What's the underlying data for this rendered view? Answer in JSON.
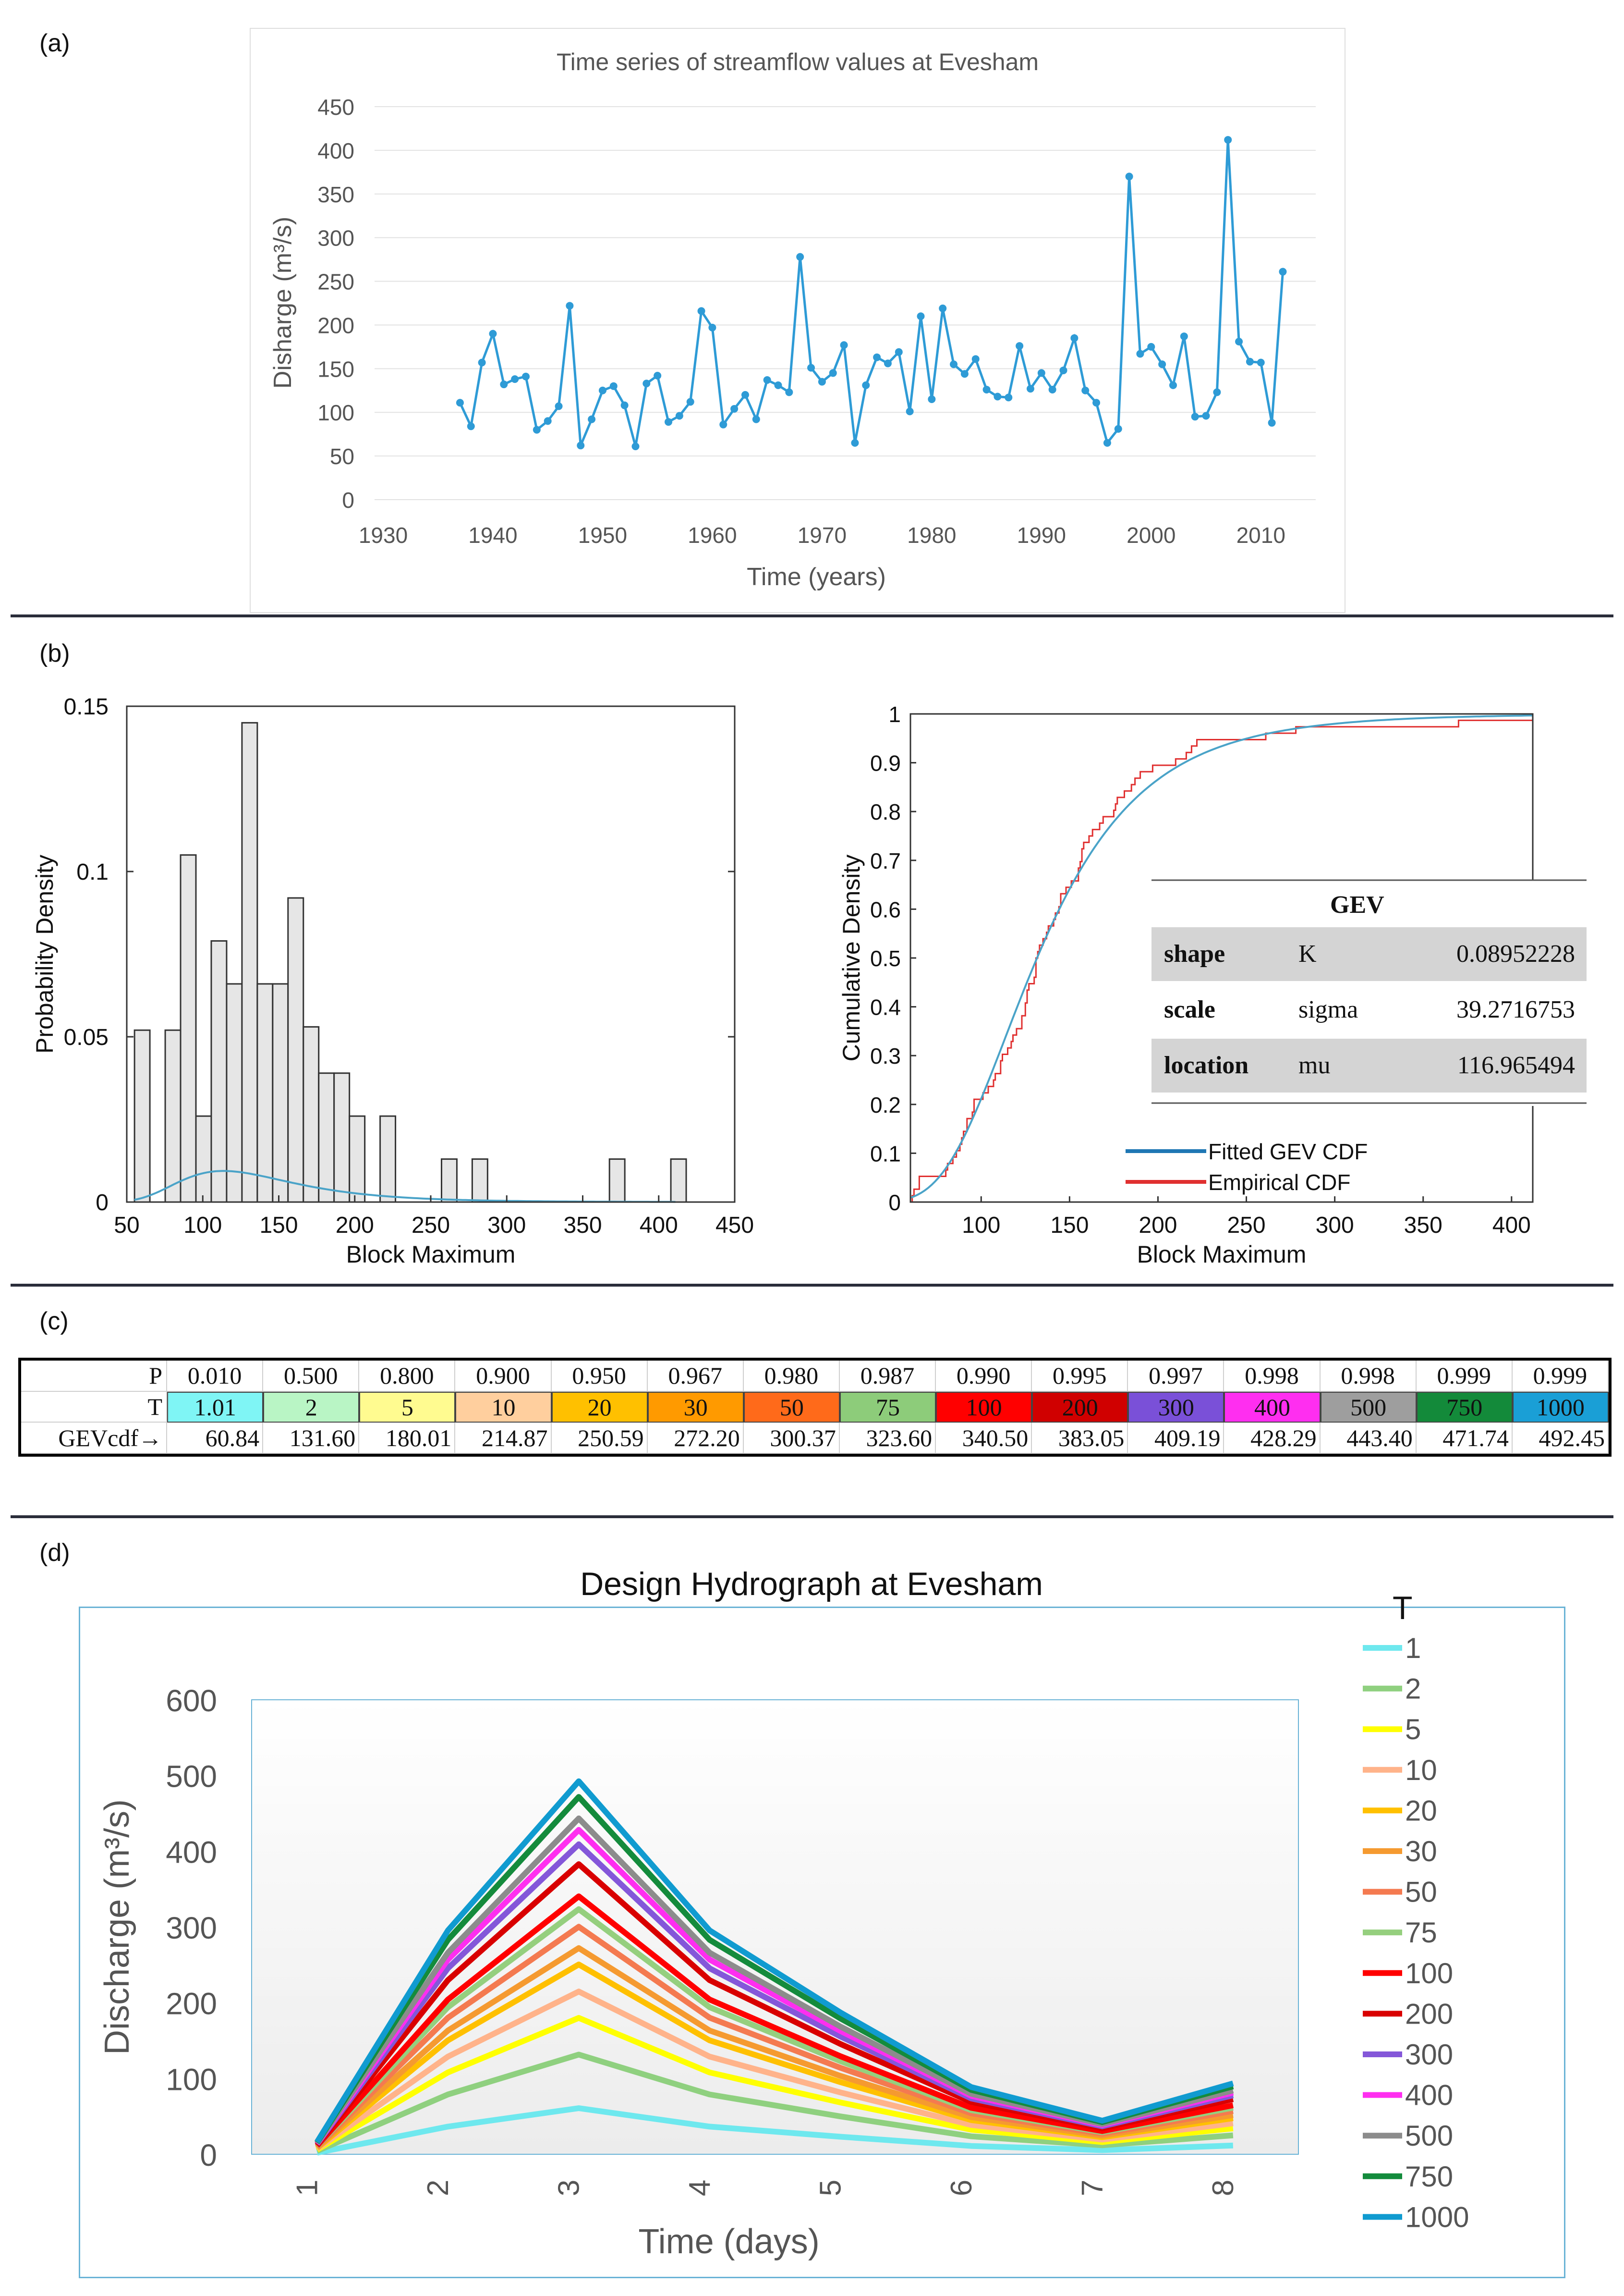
{
  "panels": {
    "a": "(a)",
    "b": "(b)",
    "c": "(c)",
    "d": "(d)"
  },
  "chart_data": [
    {
      "id": "a",
      "type": "line",
      "title": "Time series of streamflow values at Evesham",
      "xlabel": "Time (years)",
      "ylabel": "Disharge (m³/s)",
      "xlim": [
        1930,
        2015
      ],
      "ylim": [
        0,
        450
      ],
      "xticks": [
        1930,
        1940,
        1950,
        1960,
        1970,
        1980,
        1990,
        2000,
        2010
      ],
      "yticks": [
        0,
        50,
        100,
        150,
        200,
        250,
        300,
        350,
        400,
        450
      ],
      "color": "#2e9bd6",
      "x": [
        1937,
        1938,
        1939,
        1940,
        1941,
        1942,
        1943,
        1944,
        1945,
        1946,
        1947,
        1948,
        1949,
        1950,
        1951,
        1952,
        1953,
        1954,
        1955,
        1956,
        1957,
        1958,
        1959,
        1960,
        1961,
        1962,
        1963,
        1964,
        1965,
        1966,
        1967,
        1968,
        1969,
        1970,
        1971,
        1972,
        1973,
        1974,
        1975,
        1976,
        1977,
        1978,
        1979,
        1980,
        1981,
        1982,
        1983,
        1984,
        1985,
        1986,
        1987,
        1988,
        1989,
        1990,
        1991,
        1992,
        1993,
        1994,
        1995,
        1996,
        1997,
        1998,
        1999,
        2000,
        2001,
        2002,
        2003,
        2004,
        2005,
        2006,
        2007,
        2008,
        2009,
        2010,
        2011,
        2012
      ],
      "y": [
        111,
        84,
        157,
        190,
        132,
        138,
        141,
        80,
        90,
        107,
        222,
        62,
        92,
        125,
        130,
        108,
        61,
        133,
        142,
        89,
        96,
        112,
        216,
        197,
        86,
        104,
        120,
        92,
        137,
        131,
        123,
        278,
        151,
        135,
        145,
        177,
        65,
        131,
        163,
        156,
        169,
        101,
        210,
        115,
        219,
        155,
        144,
        161,
        126,
        118,
        117,
        176,
        127,
        145,
        126,
        148,
        185,
        125,
        111,
        65,
        81,
        370,
        167,
        175,
        155,
        131,
        187,
        95,
        96,
        123,
        412,
        181,
        158,
        157,
        88,
        261
      ]
    },
    {
      "id": "b-left",
      "type": "bar",
      "xlabel": "Block Maximum",
      "ylabel": "Probability Density",
      "xlim": [
        50,
        450
      ],
      "ylim": [
        0,
        0.15
      ],
      "xticks": [
        50,
        100,
        150,
        200,
        250,
        300,
        350,
        400,
        450
      ],
      "yticks": [
        0,
        0.05,
        0.1,
        0.15
      ],
      "ytick_labels": [
        "0",
        "0.05",
        "0.1",
        "0.15"
      ],
      "bin_width": 10.1,
      "bin_starts": [
        55.1,
        65.2,
        75.3,
        85.4,
        95.5,
        105.6,
        115.7,
        125.8,
        135.9,
        146.0,
        156.1,
        166.2,
        176.3,
        186.4,
        196.5,
        206.6,
        216.7,
        257.1,
        267.2,
        277.3,
        367.6,
        408.0
      ],
      "densities": [
        0.052,
        0.0,
        0.052,
        0.105,
        0.026,
        0.079,
        0.066,
        0.145,
        0.066,
        0.066,
        0.092,
        0.053,
        0.039,
        0.039,
        0.026,
        0.0,
        0.026,
        0.013,
        0.0,
        0.013,
        0.013,
        0.013
      ],
      "fit_curve_color": "#4aa3c8"
    },
    {
      "id": "b-right",
      "type": "line",
      "xlabel": "Block Maximum",
      "ylabel": "Cumulative Density",
      "xlim": [
        60,
        412
      ],
      "ylim": [
        0,
        1
      ],
      "xticks": [
        100,
        150,
        200,
        250,
        300,
        350,
        400
      ],
      "yticks": [
        0,
        0.1,
        0.2,
        0.3,
        0.4,
        0.5,
        0.6,
        0.7,
        0.8,
        0.9,
        1
      ],
      "ytick_labels": [
        "0",
        "0.1",
        "0.2",
        "0.3",
        "0.4",
        "0.5",
        "0.6",
        "0.7",
        "0.8",
        "0.9",
        "1"
      ],
      "series": [
        {
          "name": "Fitted GEV CDF",
          "color": "#1f77b4"
        },
        {
          "name": "Empirical CDF",
          "color": "#e03030"
        }
      ],
      "gev_table": {
        "header": "GEV",
        "rows": [
          {
            "param": "shape",
            "symbol": "K",
            "value": "0.08952228"
          },
          {
            "param": "scale",
            "symbol": "sigma",
            "value": "39.2716753"
          },
          {
            "param": "location",
            "symbol": "mu",
            "value": "116.965494"
          }
        ]
      },
      "gev_params": {
        "k": 0.08952228,
        "sigma": 39.2716753,
        "mu": 116.965494
      }
    },
    {
      "id": "c",
      "type": "table",
      "row_labels": [
        "P",
        "T",
        "GEVcdf→"
      ],
      "P": [
        "0.010",
        "0.500",
        "0.800",
        "0.900",
        "0.950",
        "0.967",
        "0.980",
        "0.987",
        "0.990",
        "0.995",
        "0.997",
        "0.998",
        "0.998",
        "0.999",
        "0.999"
      ],
      "T": [
        "1.01",
        "2",
        "5",
        "10",
        "20",
        "30",
        "50",
        "75",
        "100",
        "200",
        "300",
        "400",
        "500",
        "750",
        "1000"
      ],
      "GEVcdf": [
        "60.84",
        "131.60",
        "180.01",
        "214.87",
        "250.59",
        "272.20",
        "300.37",
        "323.60",
        "340.50",
        "383.05",
        "409.19",
        "428.29",
        "443.40",
        "471.74",
        "492.45"
      ],
      "T_colors": [
        "#7ff5f5",
        "#b9f5c5",
        "#fffb90",
        "#ffcf9e",
        "#ffc000",
        "#ff9a00",
        "#ff6a1a",
        "#8dcc7a",
        "#ff0000",
        "#d00000",
        "#7a50d8",
        "#ff2ef0",
        "#9e9e9e",
        "#138a3a",
        "#1a9fd6"
      ]
    },
    {
      "id": "d",
      "type": "line",
      "title": "Design Hydrograph at Evesham",
      "xlabel": "Time (days)",
      "ylabel": "Discharge (m³/s)",
      "legend_title": "T",
      "categories": [
        "1",
        "2",
        "3",
        "4",
        "5",
        "6",
        "7",
        "8"
      ],
      "ylim": [
        0,
        600
      ],
      "yticks": [
        0,
        100,
        200,
        300,
        400,
        500,
        600
      ],
      "ratios": [
        0.033,
        0.6,
        1.0,
        0.6,
        0.38,
        0.18,
        0.09,
        0.19
      ],
      "series": [
        {
          "name": "1",
          "peak": 60.84,
          "color": "#6ee8ee"
        },
        {
          "name": "2",
          "peak": 131.6,
          "color": "#8fd07f"
        },
        {
          "name": "5",
          "peak": 180.01,
          "color": "#ffff00"
        },
        {
          "name": "10",
          "peak": 214.87,
          "color": "#ffb38a"
        },
        {
          "name": "20",
          "peak": 250.59,
          "color": "#ffc000"
        },
        {
          "name": "30",
          "peak": 272.2,
          "color": "#f59a30"
        },
        {
          "name": "50",
          "peak": 300.37,
          "color": "#f47a50"
        },
        {
          "name": "75",
          "peak": 323.6,
          "color": "#95cf7e"
        },
        {
          "name": "100",
          "peak": 340.5,
          "color": "#ff0000"
        },
        {
          "name": "200",
          "peak": 383.05,
          "color": "#d90000"
        },
        {
          "name": "300",
          "peak": 409.19,
          "color": "#8457d9"
        },
        {
          "name": "400",
          "peak": 428.29,
          "color": "#ff2ef0"
        },
        {
          "name": "500",
          "peak": 443.4,
          "color": "#8c8c8c"
        },
        {
          "name": "750",
          "peak": 471.74,
          "color": "#148b3c"
        },
        {
          "name": "1000",
          "peak": 492.45,
          "color": "#109bd0"
        }
      ]
    }
  ]
}
